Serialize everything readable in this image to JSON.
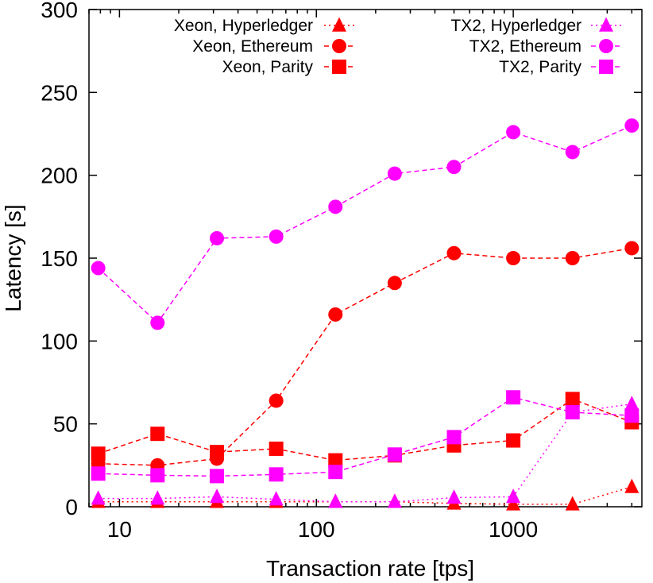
{
  "chart_data": {
    "type": "line",
    "xlabel": "Transaction rate [tps]",
    "ylabel": "Latency [s]",
    "x_scale": "log",
    "xlim": [
      7,
      4500
    ],
    "ylim": [
      0,
      300
    ],
    "x_ticks": [
      10,
      100,
      1000
    ],
    "x_tick_labels": [
      "10",
      "100",
      "1000"
    ],
    "y_ticks": [
      0,
      50,
      100,
      150,
      200,
      250,
      300
    ],
    "y_tick_labels": [
      "0",
      "50",
      "100",
      "150",
      "200",
      "250",
      "300"
    ],
    "grid": false,
    "legend_position": "top",
    "x": [
      7.8,
      15.6,
      31.25,
      62.5,
      125,
      250,
      500,
      1000,
      2000,
      4000
    ],
    "series": [
      {
        "name": "Xeon, Hyperledger",
        "color": "#ff0000",
        "marker": "triangle",
        "dash": "dotted",
        "values": [
          3,
          3,
          3,
          3,
          3,
          3,
          2,
          1.5,
          1.5,
          12
        ]
      },
      {
        "name": "Xeon, Ethereum",
        "color": "#ff0000",
        "marker": "circle",
        "dash": "dashed",
        "values": [
          26,
          25,
          29,
          64,
          116,
          135,
          153,
          150,
          150,
          156
        ]
      },
      {
        "name": "Xeon, Parity",
        "color": "#ff0000",
        "marker": "square",
        "dash": "dashed",
        "values": [
          32,
          44,
          33,
          35,
          28,
          31,
          37,
          40,
          65,
          51
        ]
      },
      {
        "name": "TX2, Hyperledger",
        "color": "#ff00ff",
        "marker": "triangle",
        "dash": "dotted",
        "values": [
          5,
          5,
          6,
          4.5,
          3,
          3,
          5.5,
          6,
          57,
          62
        ]
      },
      {
        "name": "TX2, Ethereum",
        "color": "#ff00ff",
        "marker": "circle",
        "dash": "dashed",
        "values": [
          144,
          111,
          162,
          163,
          181,
          201,
          205,
          226,
          214,
          230
        ]
      },
      {
        "name": "TX2, Parity",
        "color": "#ff00ff",
        "marker": "square",
        "dash": "dashed",
        "values": [
          20,
          19,
          18.5,
          19.5,
          21,
          31.5,
          42,
          66,
          57,
          55
        ]
      }
    ]
  }
}
